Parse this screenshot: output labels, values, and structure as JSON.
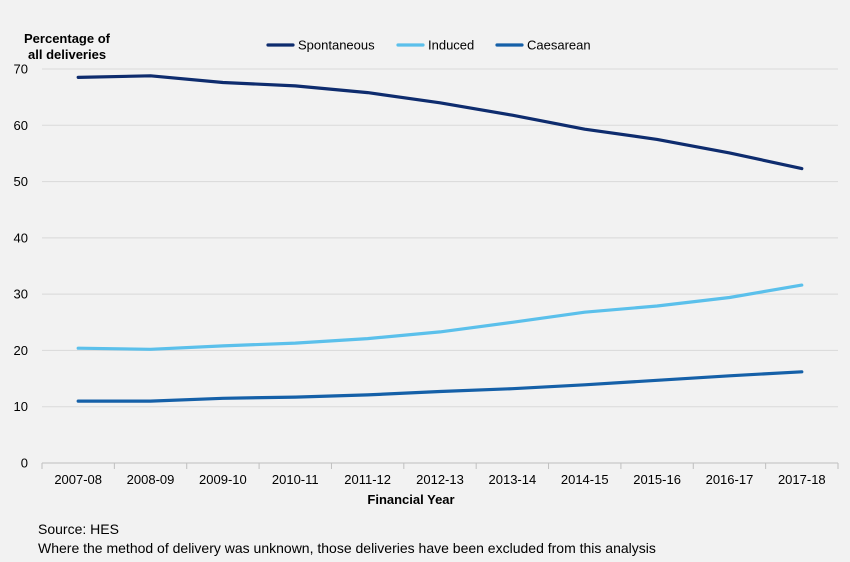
{
  "chart_data": {
    "type": "line",
    "ylabel_lines": [
      "Percentage of",
      "all deliveries"
    ],
    "xlabel": "Financial Year",
    "ylim": [
      0,
      70
    ],
    "yticks": [
      0,
      10,
      20,
      30,
      40,
      50,
      60,
      70
    ],
    "grid": true,
    "legend_position": "top",
    "categories": [
      "2007-08",
      "2008-09",
      "2009-10",
      "2010-11",
      "2011-12",
      "2012-13",
      "2013-14",
      "2014-15",
      "2015-16",
      "2016-17",
      "2017-18"
    ],
    "series": [
      {
        "name": "Spontaneous",
        "color": "#0e2c6e",
        "values": [
          68.5,
          68.8,
          67.6,
          67.0,
          65.8,
          64.0,
          61.8,
          59.3,
          57.5,
          55.1,
          52.3
        ]
      },
      {
        "name": "Induced",
        "color": "#5bc0eb",
        "values": [
          20.4,
          20.2,
          20.8,
          21.3,
          22.1,
          23.3,
          25.0,
          26.8,
          27.9,
          29.4,
          31.6
        ]
      },
      {
        "name": "Caesarean",
        "color": "#1560a8",
        "values": [
          11.0,
          11.0,
          11.5,
          11.7,
          12.1,
          12.7,
          13.2,
          13.9,
          14.7,
          15.5,
          16.2
        ]
      }
    ]
  },
  "footnotes": {
    "source": "Source: HES",
    "note": "Where the method of delivery was unknown, those deliveries have been excluded from this analysis"
  }
}
